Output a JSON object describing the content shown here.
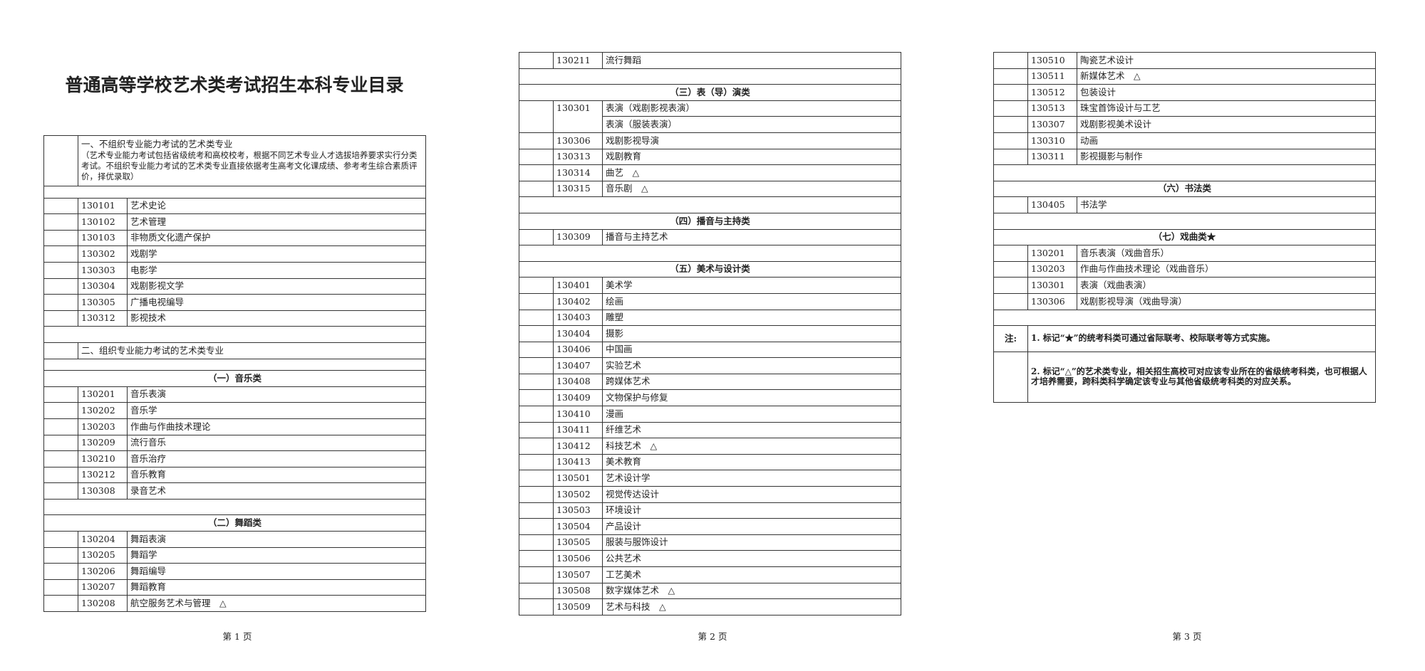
{
  "title": "普通高等学校艺术类考试招生本科专业目录",
  "pages": [
    {
      "footer": "第 1 页",
      "rows": [
        {
          "section": "一、不组织专业能力考试的艺术类专业",
          "note": "（艺术专业能力考试包括省级统考和高校校考，根据不同艺术专业人才选拔培养要求实行分类考试。不组织专业能力考试的艺术类专业直接依据考生高考文化课成绩、参考考生综合素质评价，择优录取）"
        },
        null,
        {
          "code": "130101",
          "name": "艺术史论"
        },
        {
          "code": "130102",
          "name": "艺术管理"
        },
        {
          "code": "130103",
          "name": "非物质文化遗产保护"
        },
        {
          "code": "130302",
          "name": "戏剧学"
        },
        {
          "code": "130303",
          "name": "电影学"
        },
        {
          "code": "130304",
          "name": "戏剧影视文学"
        },
        {
          "code": "130305",
          "name": "广播电视编导"
        },
        {
          "code": "130312",
          "name": "影视技术"
        },
        null,
        {
          "section": "二、组织专业能力考试的艺术类专业"
        },
        null,
        {
          "heading": "（一）音乐类"
        },
        {
          "code": "130201",
          "name": "音乐表演"
        },
        {
          "code": "130202",
          "name": "音乐学"
        },
        {
          "code": "130203",
          "name": "作曲与作曲技术理论"
        },
        {
          "code": "130209",
          "name": "流行音乐"
        },
        {
          "code": "130210",
          "name": "音乐治疗"
        },
        {
          "code": "130212",
          "name": "音乐教育"
        },
        {
          "code": "130308",
          "name": "录音艺术"
        },
        null,
        {
          "heading": "（二）舞蹈类"
        },
        {
          "code": "130204",
          "name": "舞蹈表演"
        },
        {
          "code": "130205",
          "name": "舞蹈学"
        },
        {
          "code": "130206",
          "name": "舞蹈编导"
        },
        {
          "code": "130207",
          "name": "舞蹈教育"
        },
        {
          "code": "130208",
          "name": "航空服务艺术与管理　△"
        }
      ]
    },
    {
      "footer": "第 2 页",
      "rows": [
        {
          "code": "130211",
          "name": "流行舞蹈"
        },
        null,
        {
          "heading": "（三）表（导）演类"
        },
        {
          "code": "130301",
          "name": [
            "表演（戏剧影视表演）",
            "表演（服装表演）"
          ]
        },
        {
          "code": "130306",
          "name": "戏剧影视导演"
        },
        {
          "code": "130313",
          "name": "戏剧教育"
        },
        {
          "code": "130314",
          "name": "曲艺　△"
        },
        {
          "code": "130315",
          "name": "音乐剧　△"
        },
        null,
        {
          "heading": "（四）播音与主持类"
        },
        {
          "code": "130309",
          "name": "播音与主持艺术"
        },
        null,
        {
          "heading": "（五）美术与设计类"
        },
        {
          "code": "130401",
          "name": "美术学"
        },
        {
          "code": "130402",
          "name": "绘画"
        },
        {
          "code": "130403",
          "name": "雕塑"
        },
        {
          "code": "130404",
          "name": "摄影"
        },
        {
          "code": "130406",
          "name": "中国画"
        },
        {
          "code": "130407",
          "name": "实验艺术"
        },
        {
          "code": "130408",
          "name": "跨媒体艺术"
        },
        {
          "code": "130409",
          "name": "文物保护与修复"
        },
        {
          "code": "130410",
          "name": "漫画"
        },
        {
          "code": "130411",
          "name": "纤维艺术"
        },
        {
          "code": "130412",
          "name": "科技艺术　△"
        },
        {
          "code": "130413",
          "name": "美术教育"
        },
        {
          "code": "130501",
          "name": "艺术设计学"
        },
        {
          "code": "130502",
          "name": "视觉传达设计"
        },
        {
          "code": "130503",
          "name": "环境设计"
        },
        {
          "code": "130504",
          "name": "产品设计"
        },
        {
          "code": "130505",
          "name": "服装与服饰设计"
        },
        {
          "code": "130506",
          "name": "公共艺术"
        },
        {
          "code": "130507",
          "name": "工艺美术"
        },
        {
          "code": "130508",
          "name": "数字媒体艺术　△"
        },
        {
          "code": "130509",
          "name": "艺术与科技　△"
        }
      ]
    },
    {
      "footer": "第 3 页",
      "rows": [
        {
          "code": "130510",
          "name": "陶瓷艺术设计"
        },
        {
          "code": "130511",
          "name": "新媒体艺术　△"
        },
        {
          "code": "130512",
          "name": "包装设计"
        },
        {
          "code": "130513",
          "name": "珠宝首饰设计与工艺"
        },
        {
          "code": "130307",
          "name": "戏剧影视美术设计"
        },
        {
          "code": "130310",
          "name": "动画"
        },
        {
          "code": "130311",
          "name": "影视摄影与制作"
        },
        null,
        {
          "heading": "（六）书法类"
        },
        {
          "code": "130405",
          "name": "书法学"
        },
        null,
        {
          "heading": "（七）戏曲类★"
        },
        {
          "code": "130201",
          "name": "音乐表演（戏曲音乐）"
        },
        {
          "code": "130203",
          "name": "作曲与作曲技术理论（戏曲音乐）"
        },
        {
          "code": "130301",
          "name": "表演（戏曲表演）"
        },
        {
          "code": "130306",
          "name": "戏剧影视导演（戏曲导演）"
        },
        null,
        {
          "label": "注:",
          "text": "1. 标记“★”的统考科类可通过省际联考、校际联考等方式实施。"
        },
        {
          "text": "2. 标记“△”的艺术类专业，相关招生高校可对应该专业所在的省级统考科类，也可根据人才培养需要，跨科类科学确定该专业与其他省级统考科类的对应关系。"
        }
      ]
    }
  ]
}
